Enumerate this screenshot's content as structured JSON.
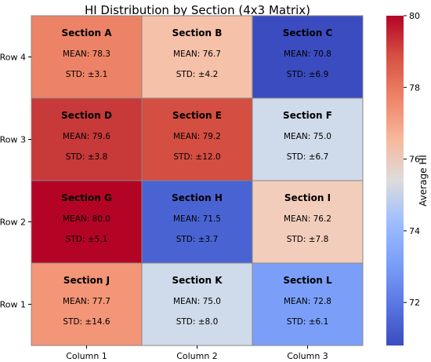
{
  "chart_data": {
    "type": "heatmap",
    "title": "HI Distribution by Section (4x3 Matrix)",
    "columns": [
      "Column 1",
      "Column 2",
      "Column 3"
    ],
    "rows": [
      "Row 4",
      "Row 3",
      "Row 2",
      "Row 1"
    ],
    "cells": [
      [
        {
          "section": "Section A",
          "mean_label": "MEAN: 78.3",
          "std_label": "STD: ±3.1",
          "value": 78.3
        },
        {
          "section": "Section B",
          "mean_label": "MEAN: 76.7",
          "std_label": "STD: ±4.2",
          "value": 76.7
        },
        {
          "section": "Section C",
          "mean_label": "MEAN: 70.8",
          "std_label": "STD: ±6.9",
          "value": 70.8
        }
      ],
      [
        {
          "section": "Section D",
          "mean_label": "MEAN: 79.6",
          "std_label": "STD: ±3.8",
          "value": 79.6
        },
        {
          "section": "Section E",
          "mean_label": "MEAN: 79.2",
          "std_label": "STD: ±12.0",
          "value": 79.2
        },
        {
          "section": "Section F",
          "mean_label": "MEAN: 75.0",
          "std_label": "STD: ±6.7",
          "value": 75.0
        }
      ],
      [
        {
          "section": "Section G",
          "mean_label": "MEAN: 80.0",
          "std_label": "STD: ±5.1",
          "value": 80.0
        },
        {
          "section": "Section H",
          "mean_label": "MEAN: 71.5",
          "std_label": "STD: ±3.7",
          "value": 71.5
        },
        {
          "section": "Section I",
          "mean_label": "MEAN: 76.2",
          "std_label": "STD: ±7.8",
          "value": 76.2
        }
      ],
      [
        {
          "section": "Section J",
          "mean_label": "MEAN: 77.7",
          "std_label": "STD: ±14.6",
          "value": 77.7
        },
        {
          "section": "Section K",
          "mean_label": "MEAN: 75.0",
          "std_label": "STD: ±8.0",
          "value": 75.0
        },
        {
          "section": "Section L",
          "mean_label": "MEAN: 72.8",
          "std_label": "STD: ±6.1",
          "value": 72.8
        }
      ]
    ],
    "colorbar": {
      "label": "Average HI",
      "range": [
        70.8,
        80.0
      ],
      "ticks": [
        72,
        74,
        76,
        78,
        80
      ],
      "colormap": "coolwarm"
    },
    "colors": {
      "Section A": "#ed8366",
      "Section B": "#f5c1a9",
      "Section C": "#3b4cc0",
      "Section D": "#c8393a",
      "Section E": "#d44e41",
      "Section F": "#cfdaea",
      "Section G": "#b40426",
      "Section H": "#4a63d3",
      "Section I": "#f2cdbb",
      "Section J": "#f39577",
      "Section K": "#cfdaea",
      "Section L": "#7b9ff9"
    }
  }
}
